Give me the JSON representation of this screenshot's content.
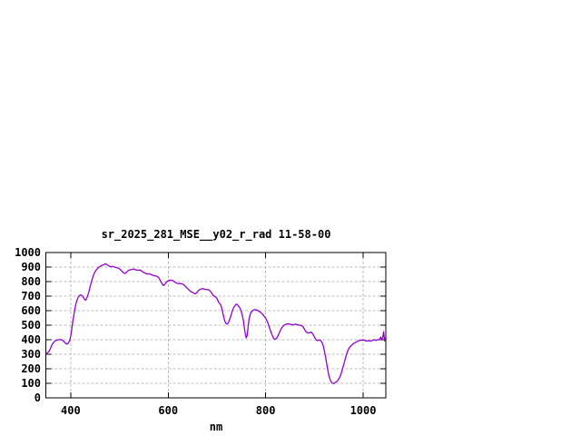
{
  "colors": {
    "line": "#9400d3",
    "grid": "#bcbcbc",
    "border": "#000000",
    "background": "#ffffff",
    "text": "#000000"
  },
  "chart_data": {
    "type": "line",
    "title": "sr_2025_281_MSE__y02_r_rad 11-58-00",
    "xlabel": "nm",
    "ylabel": "",
    "legend": "none",
    "grid": "on",
    "x_axis": {
      "range": [
        349,
        1046.5
      ],
      "ticks": [
        {
          "v": 400,
          "label": "400"
        },
        {
          "v": 600,
          "label": "600"
        },
        {
          "v": 800,
          "label": "800"
        },
        {
          "v": 1000,
          "label": "1000"
        }
      ]
    },
    "y_axis": {
      "range": [
        0,
        1000
      ],
      "ticks": [
        {
          "v": 0,
          "label": "0"
        },
        {
          "v": 100,
          "label": "100"
        },
        {
          "v": 200,
          "label": "200"
        },
        {
          "v": 300,
          "label": "300"
        },
        {
          "v": 400,
          "label": "400"
        },
        {
          "v": 500,
          "label": "500"
        },
        {
          "v": 600,
          "label": "600"
        },
        {
          "v": 700,
          "label": "700"
        },
        {
          "v": 800,
          "label": "800"
        },
        {
          "v": 900,
          "label": "900"
        },
        {
          "v": 1000,
          "label": "1000"
        }
      ]
    },
    "series": [
      {
        "name": "sr_2025_281_MSE__y02_r_rad",
        "points": [
          [
            350,
            305
          ],
          [
            353,
            312
          ],
          [
            356,
            322
          ],
          [
            359,
            345
          ],
          [
            362,
            368
          ],
          [
            365,
            382
          ],
          [
            368,
            392
          ],
          [
            371,
            397
          ],
          [
            374,
            400
          ],
          [
            377,
            400
          ],
          [
            380,
            401
          ],
          [
            383,
            397
          ],
          [
            386,
            388
          ],
          [
            389,
            376
          ],
          [
            392,
            370
          ],
          [
            395,
            376
          ],
          [
            398,
            395
          ],
          [
            400,
            425
          ],
          [
            402,
            470
          ],
          [
            404,
            520
          ],
          [
            406,
            560
          ],
          [
            408,
            600
          ],
          [
            410,
            638
          ],
          [
            412,
            662
          ],
          [
            414,
            682
          ],
          [
            416,
            696
          ],
          [
            418,
            704
          ],
          [
            420,
            708
          ],
          [
            422,
            706
          ],
          [
            424,
            700
          ],
          [
            426,
            692
          ],
          [
            428,
            680
          ],
          [
            430,
            672
          ],
          [
            432,
            678
          ],
          [
            434,
            695
          ],
          [
            436,
            715
          ],
          [
            438,
            740
          ],
          [
            440,
            768
          ],
          [
            442,
            792
          ],
          [
            444,
            815
          ],
          [
            446,
            838
          ],
          [
            448,
            855
          ],
          [
            450,
            868
          ],
          [
            452,
            878
          ],
          [
            455,
            890
          ],
          [
            458,
            900
          ],
          [
            461,
            906
          ],
          [
            464,
            911
          ],
          [
            467,
            915
          ],
          [
            470,
            921
          ],
          [
            473,
            920
          ],
          [
            476,
            913
          ],
          [
            479,
            906
          ],
          [
            482,
            902
          ],
          [
            485,
            904
          ],
          [
            488,
            903
          ],
          [
            491,
            899
          ],
          [
            494,
            896
          ],
          [
            497,
            893
          ],
          [
            500,
            888
          ],
          [
            503,
            878
          ],
          [
            506,
            868
          ],
          [
            509,
            858
          ],
          [
            512,
            856
          ],
          [
            515,
            866
          ],
          [
            518,
            876
          ],
          [
            521,
            880
          ],
          [
            524,
            882
          ],
          [
            527,
            885
          ],
          [
            530,
            886
          ],
          [
            533,
            881
          ],
          [
            536,
            878
          ],
          [
            539,
            879
          ],
          [
            542,
            880
          ],
          [
            545,
            875
          ],
          [
            548,
            866
          ],
          [
            551,
            860
          ],
          [
            554,
            856
          ],
          [
            557,
            851
          ],
          [
            560,
            854
          ],
          [
            563,
            852
          ],
          [
            566,
            847
          ],
          [
            569,
            843
          ],
          [
            572,
            840
          ],
          [
            575,
            838
          ],
          [
            578,
            835
          ],
          [
            581,
            825
          ],
          [
            584,
            805
          ],
          [
            587,
            788
          ],
          [
            590,
            773
          ],
          [
            593,
            780
          ],
          [
            596,
            795
          ],
          [
            599,
            804
          ],
          [
            602,
            808
          ],
          [
            605,
            810
          ],
          [
            608,
            808
          ],
          [
            611,
            803
          ],
          [
            614,
            795
          ],
          [
            617,
            790
          ],
          [
            620,
            787
          ],
          [
            623,
            786
          ],
          [
            626,
            786
          ],
          [
            629,
            784
          ],
          [
            632,
            778
          ],
          [
            635,
            768
          ],
          [
            638,
            758
          ],
          [
            641,
            748
          ],
          [
            644,
            738
          ],
          [
            647,
            730
          ],
          [
            650,
            726
          ],
          [
            653,
            718
          ],
          [
            656,
            716
          ],
          [
            659,
            725
          ],
          [
            662,
            738
          ],
          [
            665,
            746
          ],
          [
            668,
            750
          ],
          [
            671,
            751
          ],
          [
            674,
            748
          ],
          [
            677,
            746
          ],
          [
            680,
            745
          ],
          [
            683,
            744
          ],
          [
            686,
            736
          ],
          [
            689,
            722
          ],
          [
            692,
            705
          ],
          [
            695,
            698
          ],
          [
            698,
            692
          ],
          [
            700,
            685
          ],
          [
            702,
            668
          ],
          [
            704,
            655
          ],
          [
            706,
            648
          ],
          [
            708,
            638
          ],
          [
            710,
            615
          ],
          [
            712,
            585
          ],
          [
            714,
            555
          ],
          [
            716,
            530
          ],
          [
            718,
            515
          ],
          [
            720,
            508
          ],
          [
            722,
            510
          ],
          [
            724,
            520
          ],
          [
            726,
            540
          ],
          [
            728,
            558
          ],
          [
            730,
            582
          ],
          [
            732,
            602
          ],
          [
            734,
            618
          ],
          [
            736,
            630
          ],
          [
            738,
            640
          ],
          [
            740,
            645
          ],
          [
            742,
            641
          ],
          [
            744,
            632
          ],
          [
            746,
            625
          ],
          [
            748,
            612
          ],
          [
            750,
            592
          ],
          [
            752,
            568
          ],
          [
            754,
            535
          ],
          [
            756,
            490
          ],
          [
            758,
            445
          ],
          [
            760,
            412
          ],
          [
            762,
            428
          ],
          [
            764,
            488
          ],
          [
            766,
            542
          ],
          [
            768,
            572
          ],
          [
            770,
            588
          ],
          [
            772,
            596
          ],
          [
            774,
            602
          ],
          [
            776,
            606
          ],
          [
            778,
            607
          ],
          [
            780,
            606
          ],
          [
            783,
            602
          ],
          [
            786,
            596
          ],
          [
            789,
            590
          ],
          [
            792,
            580
          ],
          [
            795,
            570
          ],
          [
            798,
            556
          ],
          [
            801,
            542
          ],
          [
            804,
            520
          ],
          [
            807,
            490
          ],
          [
            810,
            462
          ],
          [
            813,
            435
          ],
          [
            816,
            412
          ],
          [
            819,
            402
          ],
          [
            822,
            408
          ],
          [
            825,
            425
          ],
          [
            828,
            448
          ],
          [
            831,
            470
          ],
          [
            834,
            486
          ],
          [
            837,
            497
          ],
          [
            840,
            504
          ],
          [
            843,
            508
          ],
          [
            846,
            510
          ],
          [
            849,
            507
          ],
          [
            852,
            505
          ],
          [
            855,
            502
          ],
          [
            858,
            504
          ],
          [
            861,
            507
          ],
          [
            864,
            505
          ],
          [
            867,
            502
          ],
          [
            870,
            500
          ],
          [
            873,
            497
          ],
          [
            876,
            492
          ],
          [
            879,
            475
          ],
          [
            882,
            458
          ],
          [
            885,
            448
          ],
          [
            888,
            446
          ],
          [
            891,
            450
          ],
          [
            894,
            452
          ],
          [
            897,
            438
          ],
          [
            900,
            420
          ],
          [
            903,
            402
          ],
          [
            906,
            394
          ],
          [
            909,
            398
          ],
          [
            912,
            396
          ],
          [
            915,
            385
          ],
          [
            918,
            360
          ],
          [
            921,
            315
          ],
          [
            924,
            262
          ],
          [
            927,
            200
          ],
          [
            930,
            150
          ],
          [
            933,
            118
          ],
          [
            936,
            102
          ],
          [
            939,
            98
          ],
          [
            942,
            104
          ],
          [
            945,
            110
          ],
          [
            948,
            120
          ],
          [
            951,
            135
          ],
          [
            954,
            158
          ],
          [
            957,
            192
          ],
          [
            960,
            228
          ],
          [
            963,
            265
          ],
          [
            966,
            300
          ],
          [
            969,
            328
          ],
          [
            972,
            346
          ],
          [
            975,
            358
          ],
          [
            978,
            368
          ],
          [
            981,
            375
          ],
          [
            984,
            381
          ],
          [
            987,
            387
          ],
          [
            990,
            392
          ],
          [
            993,
            395
          ],
          [
            996,
            397
          ],
          [
            1000,
            398
          ],
          [
            1003,
            395
          ],
          [
            1006,
            391
          ],
          [
            1009,
            392
          ],
          [
            1012,
            394
          ],
          [
            1015,
            390
          ],
          [
            1018,
            394
          ],
          [
            1021,
            398
          ],
          [
            1024,
            400
          ],
          [
            1027,
            395
          ],
          [
            1030,
            401
          ],
          [
            1033,
            399
          ],
          [
            1036,
            418
          ],
          [
            1038,
            405
          ],
          [
            1040,
            412
          ],
          [
            1042,
            455
          ],
          [
            1044,
            392
          ],
          [
            1046,
            418
          ]
        ]
      }
    ]
  }
}
